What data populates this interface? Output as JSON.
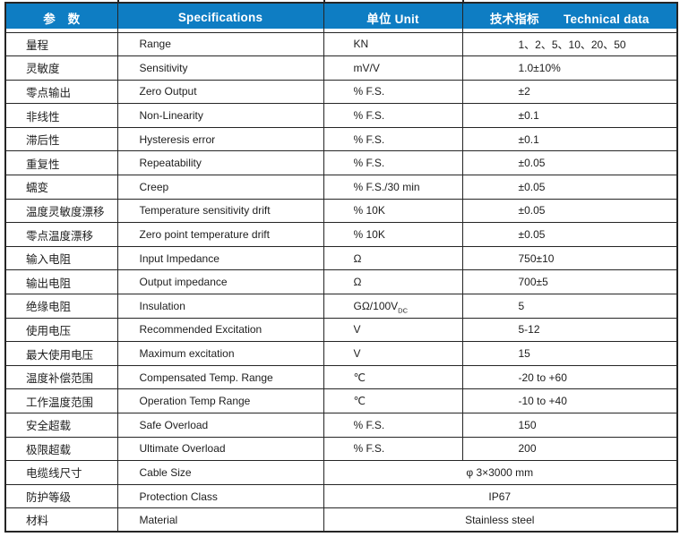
{
  "table": {
    "headers": {
      "param": "参　数",
      "spec": "Specifications",
      "unit": "单位 Unit",
      "tech": "技术指标　　Technical data"
    },
    "rows": [
      {
        "param": "量程",
        "spec": "Range",
        "unit": "KN",
        "value": "1、2、5、10、20、50"
      },
      {
        "param": "灵敏度",
        "spec": "Sensitivity",
        "unit": "mV/V",
        "value": "1.0±10%"
      },
      {
        "param": "零点输出",
        "spec": "Zero Output",
        "unit": "% F.S.",
        "value": "±2"
      },
      {
        "param": "非线性",
        "spec": "Non-Linearity",
        "unit": "% F.S.",
        "value": "±0.1"
      },
      {
        "param": "滞后性",
        "spec": "Hysteresis error",
        "unit": "% F.S.",
        "value": "±0.1"
      },
      {
        "param": "重复性",
        "spec": "Repeatability",
        "unit": "% F.S.",
        "value": "±0.05"
      },
      {
        "param": "蠕变",
        "spec": "Creep",
        "unit": "% F.S./30 min",
        "value": "±0.05"
      },
      {
        "param": "温度灵敏度漂移",
        "spec": "Temperature sensitivity drift",
        "unit": "% 10K",
        "value": "±0.05"
      },
      {
        "param": "零点温度漂移",
        "spec": "Zero point temperature drift",
        "unit": "% 10K",
        "value": "±0.05"
      },
      {
        "param": "输入电阻",
        "spec": "Input Impedance",
        "unit": "Ω",
        "value": "750±10"
      },
      {
        "param": "输出电阻",
        "spec": "Output impedance",
        "unit": "Ω",
        "value": "700±5"
      },
      {
        "param": "绝缘电阻",
        "spec": "Insulation",
        "unit": "GΩ/100V",
        "unit_sub": "DC",
        "value": "5"
      },
      {
        "param": "使用电压",
        "spec": "Recommended Excitation",
        "unit": "V",
        "value": "5-12"
      },
      {
        "param": "最大使用电压",
        "spec": "Maximum excitation",
        "unit": "V",
        "value": "15"
      },
      {
        "param": "温度补偿范围",
        "spec": "Compensated Temp. Range",
        "unit": "℃",
        "value": "-20 to +60"
      },
      {
        "param": "工作温度范围",
        "spec": "Operation Temp Range",
        "unit": "℃",
        "value": "-10 to +40"
      },
      {
        "param": "安全超载",
        "spec": "Safe Overload",
        "unit": "% F.S.",
        "value": "150"
      },
      {
        "param": "极限超载",
        "spec": "Ultimate Overload",
        "unit": "% F.S.",
        "value": "200"
      },
      {
        "param": "电缆线尺寸",
        "spec": "Cable Size",
        "merged_value": "φ 3×3000 mm"
      },
      {
        "param": "防护等级",
        "spec": "Protection Class",
        "merged_value": "IP67"
      },
      {
        "param": "材料",
        "spec": "Material",
        "merged_value": "Stainless steel"
      }
    ],
    "colors": {
      "header_bg": "#0e7dc3",
      "header_text": "#ffffff",
      "border": "#252525",
      "body_text": "#1d1d1d"
    }
  }
}
